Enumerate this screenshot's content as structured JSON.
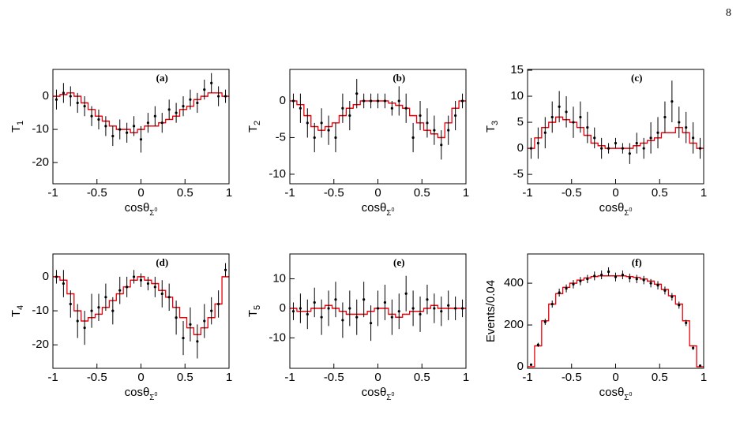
{
  "page_number": "8",
  "chart_data": [
    {
      "type": "errorbar",
      "label": "(a)",
      "ylabel": "T",
      "ylabel_sub": "1",
      "xlabel": "cosθ",
      "xlabel_sub": "Σ",
      "xlabel_sup": "0",
      "x": [
        -0.96,
        -0.88,
        -0.8,
        -0.72,
        -0.64,
        -0.56,
        -0.48,
        -0.4,
        -0.32,
        -0.24,
        -0.16,
        -0.08,
        0,
        0.08,
        0.16,
        0.24,
        0.32,
        0.4,
        0.48,
        0.56,
        0.64,
        0.72,
        0.8,
        0.88,
        0.96
      ],
      "values": [
        -1,
        1,
        0,
        -2,
        -3,
        -6,
        -7,
        -9,
        -12,
        -10,
        -11,
        -9,
        -13,
        -8,
        -6,
        -8,
        -4,
        -5,
        -3,
        -1,
        -2,
        2,
        4,
        0,
        0
      ],
      "errors": [
        3,
        3,
        3,
        3,
        3,
        3,
        3,
        3,
        3,
        3,
        3,
        3,
        4,
        3,
        3,
        3,
        3,
        3,
        3,
        3,
        3,
        3,
        3,
        3,
        2
      ],
      "fit_values": [
        0,
        0.5,
        1,
        0,
        -2,
        -4,
        -6,
        -7.5,
        -9,
        -10,
        -10,
        -11,
        -10,
        -9,
        -9,
        -8,
        -7,
        -6,
        -4,
        -3,
        -1,
        0,
        1,
        1,
        0
      ],
      "color": "#000000",
      "fit_color": "#e8000b",
      "xlim": [
        -1,
        1
      ],
      "xticks": [
        -1,
        -0.5,
        0,
        0.5,
        1
      ],
      "ylim": [
        -26.4,
        8.1
      ],
      "yticks": [
        -20,
        -10,
        0
      ]
    },
    {
      "type": "errorbar",
      "label": "(b)",
      "ylabel": "T",
      "ylabel_sub": "2",
      "xlabel": "cosθ",
      "xlabel_sub": "Σ",
      "xlabel_sup": "0",
      "x": [
        -0.96,
        -0.88,
        -0.8,
        -0.72,
        -0.64,
        -0.56,
        -0.48,
        -0.4,
        -0.32,
        -0.24,
        -0.16,
        -0.08,
        0,
        0.08,
        0.16,
        0.24,
        0.32,
        0.4,
        0.48,
        0.56,
        0.64,
        0.72,
        0.8,
        0.88,
        0.96
      ],
      "values": [
        0,
        -1,
        -3,
        -5,
        -3,
        -4,
        -5,
        -1,
        -2,
        1,
        0,
        0,
        0,
        0,
        -1,
        0,
        -1,
        -5,
        -2,
        -3,
        -4,
        -6,
        -4,
        -2,
        0
      ],
      "errors": [
        1,
        2,
        2,
        2,
        2,
        2,
        2,
        2,
        2,
        2,
        1,
        1,
        1,
        1,
        1,
        2,
        2,
        2,
        2,
        2,
        2,
        2,
        2,
        2,
        1
      ],
      "fit_values": [
        0,
        -0.5,
        -2,
        -3.5,
        -4,
        -3.5,
        -3,
        -2,
        -1,
        -0.5,
        0,
        0,
        0,
        0,
        -0.3,
        -0.6,
        -1,
        -2,
        -3,
        -4,
        -4.5,
        -5,
        -3,
        -1,
        0
      ],
      "color": "#000000",
      "fit_color": "#e8000b",
      "xlim": [
        -1,
        1
      ],
      "xticks": [
        -1,
        -0.5,
        0,
        0.5,
        1
      ],
      "ylim": [
        -11.3,
        4.3
      ],
      "yticks": [
        -10,
        -5,
        0
      ]
    },
    {
      "type": "errorbar",
      "label": "(c)",
      "ylabel": "T",
      "ylabel_sub": "3",
      "xlabel": "cosθ",
      "xlabel_sub": "Σ",
      "xlabel_sup": "0",
      "x": [
        -0.96,
        -0.88,
        -0.8,
        -0.72,
        -0.64,
        -0.56,
        -0.48,
        -0.4,
        -0.32,
        -0.24,
        -0.16,
        -0.08,
        0,
        0.08,
        0.16,
        0.24,
        0.32,
        0.4,
        0.48,
        0.56,
        0.64,
        0.72,
        0.8,
        0.88,
        0.96
      ],
      "values": [
        0,
        1,
        3,
        6,
        8,
        7,
        5,
        6,
        4,
        2,
        0,
        0,
        1,
        0,
        -1,
        1,
        0,
        2,
        3,
        6,
        9,
        5,
        4,
        2,
        0
      ],
      "errors": [
        2,
        3,
        3,
        3,
        3,
        3,
        3,
        3,
        3,
        2,
        2,
        1,
        1,
        1,
        2,
        2,
        2,
        3,
        3,
        3,
        4,
        3,
        3,
        3,
        2
      ],
      "fit_values": [
        0,
        2,
        4,
        5,
        6,
        5.5,
        5,
        4,
        2.5,
        1,
        0.5,
        0,
        0,
        0,
        0,
        0.5,
        1,
        1.5,
        2,
        3,
        3,
        4,
        3,
        1,
        0
      ],
      "color": "#000000",
      "fit_color": "#e8000b",
      "xlim": [
        -1,
        1
      ],
      "xticks": [
        -1,
        -0.5,
        0,
        0.5,
        1
      ],
      "ylim": [
        -6.8,
        15.15
      ],
      "yticks": [
        -5,
        0,
        5,
        10,
        15
      ]
    },
    {
      "type": "errorbar",
      "label": "(d)",
      "ylabel": "T",
      "ylabel_sub": "4",
      "xlabel": "cosθ",
      "xlabel_sub": "Σ",
      "xlabel_sup": "0",
      "x": [
        -0.96,
        -0.88,
        -0.8,
        -0.72,
        -0.64,
        -0.56,
        -0.48,
        -0.4,
        -0.32,
        -0.24,
        -0.16,
        -0.08,
        0,
        0.08,
        0.16,
        0.24,
        0.32,
        0.4,
        0.48,
        0.56,
        0.64,
        0.72,
        0.8,
        0.88,
        0.96
      ],
      "values": [
        0,
        -2,
        -8,
        -13,
        -15,
        -10,
        -9,
        -6,
        -10,
        -4,
        -3,
        0,
        -1,
        -2,
        -3,
        -5,
        -6,
        -12,
        -18,
        -14,
        -19,
        -13,
        -10,
        -8,
        2
      ],
      "errors": [
        2,
        4,
        4,
        5,
        5,
        5,
        4,
        4,
        4,
        4,
        3,
        2,
        2,
        2,
        3,
        4,
        4,
        5,
        5,
        5,
        5,
        5,
        4,
        4,
        2
      ],
      "fit_values": [
        0,
        -1,
        -5,
        -10,
        -13,
        -12,
        -11,
        -9,
        -7,
        -5,
        -3,
        -1,
        0,
        -1,
        -2,
        -4,
        -6,
        -9,
        -12,
        -15,
        -17,
        -15,
        -12,
        -8,
        0
      ],
      "color": "#000000",
      "fit_color": "#e8000b",
      "xlim": [
        -1,
        1
      ],
      "xticks": [
        -1,
        -0.5,
        0,
        0.5,
        1
      ],
      "ylim": [
        -26.9,
        6.7
      ],
      "yticks": [
        -20,
        -10,
        0
      ]
    },
    {
      "type": "errorbar",
      "label": "(e)",
      "ylabel": "T",
      "ylabel_sub": "5",
      "xlabel": "cosθ",
      "xlabel_sub": "Σ",
      "xlabel_sup": "0",
      "x": [
        -0.96,
        -0.88,
        -0.8,
        -0.72,
        -0.64,
        -0.56,
        -0.48,
        -0.4,
        -0.32,
        -0.24,
        -0.16,
        -0.08,
        0,
        0.08,
        0.16,
        0.24,
        0.32,
        0.4,
        0.48,
        0.56,
        0.64,
        0.72,
        0.8,
        0.88,
        0.96
      ],
      "values": [
        -1,
        0,
        -2,
        2,
        -3,
        0,
        3,
        -4,
        0,
        -3,
        3,
        -5,
        0,
        2,
        -3,
        -1,
        5,
        0,
        -2,
        3,
        0,
        -1,
        1,
        0,
        0
      ],
      "errors": [
        3,
        5,
        5,
        5,
        6,
        6,
        6,
        6,
        6,
        6,
        6,
        6,
        6,
        6,
        6,
        6,
        6,
        6,
        6,
        5,
        5,
        5,
        5,
        4,
        3
      ],
      "fit_values": [
        0,
        -1,
        -1,
        0,
        0,
        1,
        0,
        -1,
        -2,
        -2,
        -2,
        -1,
        0,
        0,
        -2,
        -3,
        -2,
        -1,
        -1,
        0,
        1,
        0,
        0,
        0,
        0
      ],
      "color": "#000000",
      "fit_color": "#e8000b",
      "xlim": [
        -1,
        1
      ],
      "xticks": [
        -1,
        -0.5,
        0,
        0.5,
        1
      ],
      "ylim": [
        -20.3,
        18.4
      ],
      "yticks": [
        -10,
        0,
        10
      ]
    },
    {
      "type": "errorbar",
      "label": "(f)",
      "ylabel": "Events/0.04",
      "xlabel": "cosθ",
      "xlabel_sub": "Σ",
      "xlabel_sup": "0",
      "x": [
        -0.96,
        -0.88,
        -0.8,
        -0.72,
        -0.64,
        -0.56,
        -0.48,
        -0.4,
        -0.32,
        -0.24,
        -0.16,
        -0.08,
        0,
        0.08,
        0.16,
        0.24,
        0.32,
        0.4,
        0.48,
        0.56,
        0.64,
        0.72,
        0.8,
        0.88,
        0.96
      ],
      "values": [
        10,
        105,
        215,
        300,
        355,
        375,
        395,
        410,
        420,
        435,
        440,
        455,
        430,
        440,
        425,
        420,
        415,
        400,
        390,
        365,
        335,
        295,
        210,
        90,
        5
      ],
      "errors": [
        3,
        10,
        15,
        17,
        19,
        19,
        20,
        20,
        20,
        21,
        21,
        21,
        21,
        21,
        21,
        20,
        20,
        20,
        20,
        19,
        18,
        17,
        15,
        10,
        2
      ],
      "fit_values": [
        0,
        100,
        220,
        300,
        350,
        380,
        400,
        415,
        425,
        432,
        435,
        435,
        435,
        435,
        432,
        428,
        420,
        410,
        395,
        370,
        340,
        300,
        220,
        100,
        0
      ],
      "color": "#000000",
      "fit_color": "#e8000b",
      "xlim": [
        -1,
        1
      ],
      "xticks": [
        -1,
        -0.5,
        0,
        0.5,
        1
      ],
      "ylim": [
        -7.5,
        540
      ],
      "yticks": [
        0,
        200,
        400
      ]
    }
  ]
}
